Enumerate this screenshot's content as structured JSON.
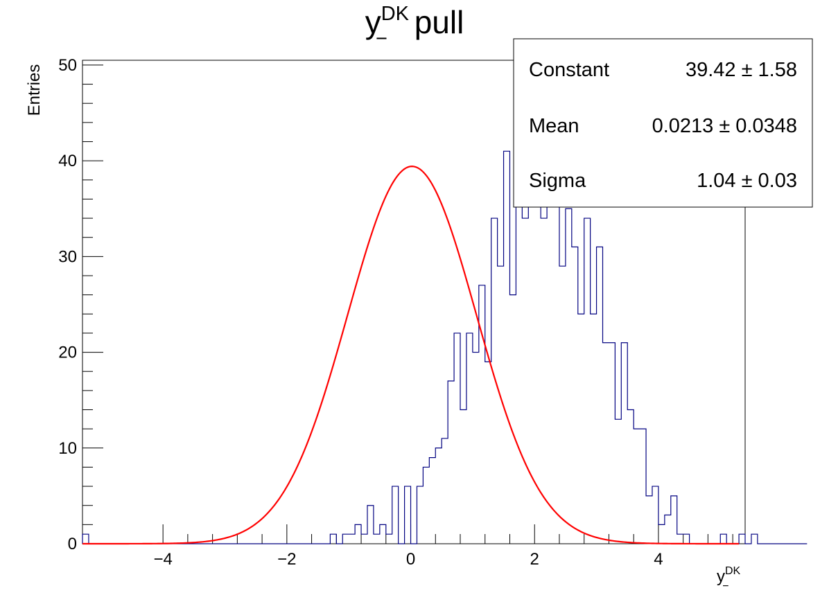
{
  "chart_data": {
    "type": "histogram",
    "title": {
      "base": "y",
      "sup": "DK",
      "sub": "−",
      "suffix": " pull"
    },
    "xlabel": {
      "base": "y",
      "sup": "DK",
      "sub": "−"
    },
    "ylabel": "Entries",
    "xlim": [
      -5.3,
      5.4
    ],
    "ylim": [
      0,
      50.5
    ],
    "x_ticks": [
      -4,
      -2,
      0,
      2,
      4
    ],
    "x_tick_labels": [
      "−4",
      "−2",
      "0",
      "2",
      "4"
    ],
    "y_ticks": [
      0,
      10,
      20,
      30,
      40,
      50
    ],
    "y_tick_labels": [
      "0",
      "10",
      "20",
      "30",
      "40",
      "50"
    ],
    "bin_edge_start": -5.3,
    "bin_width": 0.1,
    "bin_counts": [
      1,
      0,
      0,
      0,
      0,
      0,
      0,
      0,
      0,
      0,
      0,
      0,
      0,
      0,
      0,
      0,
      0,
      0,
      0,
      0,
      0,
      0,
      0,
      0,
      0,
      0,
      0,
      0,
      0,
      0,
      0,
      0,
      0,
      0,
      0,
      0,
      0,
      0,
      0,
      0,
      1,
      0,
      1,
      1,
      2,
      1,
      4,
      1,
      2,
      1,
      6,
      0,
      6,
      0,
      6,
      8,
      9,
      10,
      11,
      17,
      22,
      14,
      22,
      20,
      27,
      19,
      34,
      29,
      41,
      26,
      40,
      34,
      42,
      41,
      34,
      48,
      44,
      29,
      35,
      31,
      24,
      34,
      24,
      31,
      21,
      21,
      13,
      21,
      14,
      12,
      12,
      5,
      6,
      2,
      3,
      5,
      1,
      1,
      0,
      0,
      0,
      0,
      0,
      1,
      0,
      0,
      1,
      0,
      1,
      0,
      0,
      0,
      0,
      0,
      0,
      0,
      0
    ],
    "fit": {
      "type": "gaussian",
      "constant": 39.42,
      "mean": 0.0213,
      "sigma": 1.04
    },
    "hist_color": "#000080",
    "fit_color": "#ff0000",
    "grid": false,
    "stats_box_position": "top-right"
  },
  "stats": [
    {
      "label": "Constant",
      "value": "39.42 ± 1.58"
    },
    {
      "label": "Mean",
      "value": "0.0213 ± 0.0348"
    },
    {
      "label": "Sigma",
      "value": "1.04 ± 0.03"
    }
  ]
}
